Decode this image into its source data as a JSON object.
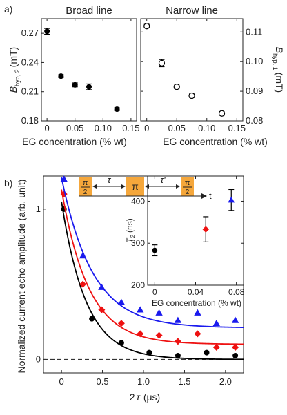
{
  "panels": {
    "a_label": "a)",
    "b_label": "b)"
  },
  "colors": {
    "black": "#000000",
    "red": "#ee1111",
    "blue": "#1a1aee",
    "pulse": "#f5a73b",
    "dash": "#333333"
  },
  "chart_data": [
    {
      "type": "scatter",
      "panel": "a-left",
      "title": "Broad line",
      "xlabel": "EG concentration (% wt)",
      "ylabel_main": "B",
      "ylabel_sub": "hyp, 2",
      "ylabel_unit": "(mT)",
      "xlim": [
        -0.01,
        0.16
      ],
      "ylim": [
        0.18,
        0.285
      ],
      "x_ticks": [
        "0",
        "0.05",
        "0.10",
        "0.15"
      ],
      "x_tick_values": [
        0,
        0.05,
        0.1,
        0.15
      ],
      "y_ticks": [
        "0.18",
        "0.21",
        "0.24",
        "0.27"
      ],
      "y_tick_values": [
        0.18,
        0.21,
        0.24,
        0.27
      ],
      "marker": "filled-circle",
      "points": [
        {
          "x": 0.0,
          "y": 0.272,
          "err": 0.003
        },
        {
          "x": 0.025,
          "y": 0.226,
          "err": 0.0015
        },
        {
          "x": 0.05,
          "y": 0.217,
          "err": 0.002
        },
        {
          "x": 0.075,
          "y": 0.215,
          "err": 0.003
        },
        {
          "x": 0.125,
          "y": 0.192,
          "err": 0.0015
        }
      ]
    },
    {
      "type": "scatter",
      "panel": "a-right",
      "title": "Narrow line",
      "xlabel": "EG concentration (% wt)",
      "ylabel_main": "B",
      "ylabel_sub": "hyp, 1",
      "ylabel_unit": "(mT)",
      "xlim": [
        -0.01,
        0.16
      ],
      "ylim": [
        0.08,
        0.1145
      ],
      "x_ticks": [
        "0",
        "0.05",
        "0.10",
        "0.15"
      ],
      "x_tick_values": [
        0,
        0.05,
        0.1,
        0.15
      ],
      "y_ticks": [
        "0.08",
        "0.09",
        "0.10",
        "0.11"
      ],
      "y_tick_values": [
        0.08,
        0.09,
        0.1,
        0.11
      ],
      "marker": "open-circle",
      "points": [
        {
          "x": 0.0,
          "y": 0.112,
          "err": 0.0006
        },
        {
          "x": 0.025,
          "y": 0.0995,
          "err": 0.0012
        },
        {
          "x": 0.05,
          "y": 0.0915,
          "err": 0.0006
        },
        {
          "x": 0.075,
          "y": 0.0885,
          "err": 0.0006
        },
        {
          "x": 0.125,
          "y": 0.0825,
          "err": 0.0006
        }
      ]
    },
    {
      "type": "scatter",
      "panel": "b-main",
      "xlabel_main": "2",
      "xlabel_tau": "τ",
      "xlabel_unit": "(μs)",
      "ylabel": "Normalized current echo amplitude (arb. unit)",
      "xlim": [
        -0.22,
        2.22
      ],
      "ylim": [
        -0.09,
        1.22
      ],
      "x_ticks": [
        "0",
        "0.5",
        "1.0",
        "1.5",
        "2.0"
      ],
      "x_tick_values": [
        0,
        0.5,
        1.0,
        1.5,
        2.0
      ],
      "y_ticks": [
        "0",
        "1"
      ],
      "y_tick_values": [
        0,
        1
      ],
      "baseline_dashed": 0,
      "series": [
        {
          "color": "#000000",
          "marker": "circle",
          "points": [
            [
              0.03,
              1.0
            ],
            [
              0.37,
              0.27
            ],
            [
              0.73,
              0.11
            ],
            [
              1.07,
              0.045
            ],
            [
              1.42,
              0.025
            ],
            [
              1.77,
              0.045
            ],
            [
              2.12,
              0.025
            ]
          ],
          "fit": {
            "A": 1.05,
            "x0": 0.0,
            "tau": 0.3,
            "c": 0.0
          }
        },
        {
          "color": "#ee1111",
          "marker": "diamond",
          "points": [
            [
              0.03,
              1.1
            ],
            [
              0.26,
              0.5
            ],
            [
              0.49,
              0.33
            ],
            [
              0.73,
              0.24
            ],
            [
              0.96,
              0.17
            ],
            [
              1.19,
              0.16
            ],
            [
              1.42,
              0.12
            ],
            [
              1.66,
              0.17
            ],
            [
              1.89,
              0.08
            ],
            [
              2.12,
              0.08
            ]
          ],
          "fit": {
            "A": 1.03,
            "x0": 0.0,
            "tau": 0.33,
            "c": 0.1
          }
        },
        {
          "color": "#1a1aee",
          "marker": "triangle",
          "points": [
            [
              0.03,
              1.2
            ],
            [
              0.26,
              0.69
            ],
            [
              0.49,
              0.48
            ],
            [
              0.73,
              0.38
            ],
            [
              0.96,
              0.33
            ],
            [
              1.19,
              0.31
            ],
            [
              1.42,
              0.26
            ],
            [
              1.66,
              0.31
            ],
            [
              1.89,
              0.24
            ],
            [
              2.12,
              0.26
            ]
          ],
          "fit": {
            "A": 1.0,
            "x0": 0.0,
            "tau": 0.38,
            "c": 0.21
          }
        }
      ]
    },
    {
      "type": "scatter",
      "panel": "b-inset",
      "xlabel": "EG concentration (% wt)",
      "ylabel_main": "T",
      "ylabel_sub": "2",
      "ylabel_unit": "(ns)",
      "xlim": [
        -0.007,
        0.087
      ],
      "ylim": [
        200,
        460
      ],
      "x_ticks": [
        "0",
        "0.04",
        "0.08"
      ],
      "x_tick_values": [
        0,
        0.04,
        0.08
      ],
      "y_ticks": [
        "200",
        "300",
        "400"
      ],
      "y_tick_values": [
        200,
        300,
        400
      ],
      "points": [
        {
          "x": 0.0,
          "y": 283,
          "err": 13,
          "color": "#000000",
          "marker": "circle"
        },
        {
          "x": 0.05,
          "y": 333,
          "err": 30,
          "color": "#ee1111",
          "marker": "diamond"
        },
        {
          "x": 0.075,
          "y": 403,
          "err": 25,
          "color": "#1a1aee",
          "marker": "triangle"
        }
      ]
    }
  ],
  "pulse_sequence": {
    "pulse1_num": "π",
    "pulse1_den": "2",
    "pulse2": "π",
    "pulse3_num": "π",
    "pulse3_den": "2",
    "tau1": "τ",
    "tau2": "τ'",
    "time_label": "t"
  }
}
